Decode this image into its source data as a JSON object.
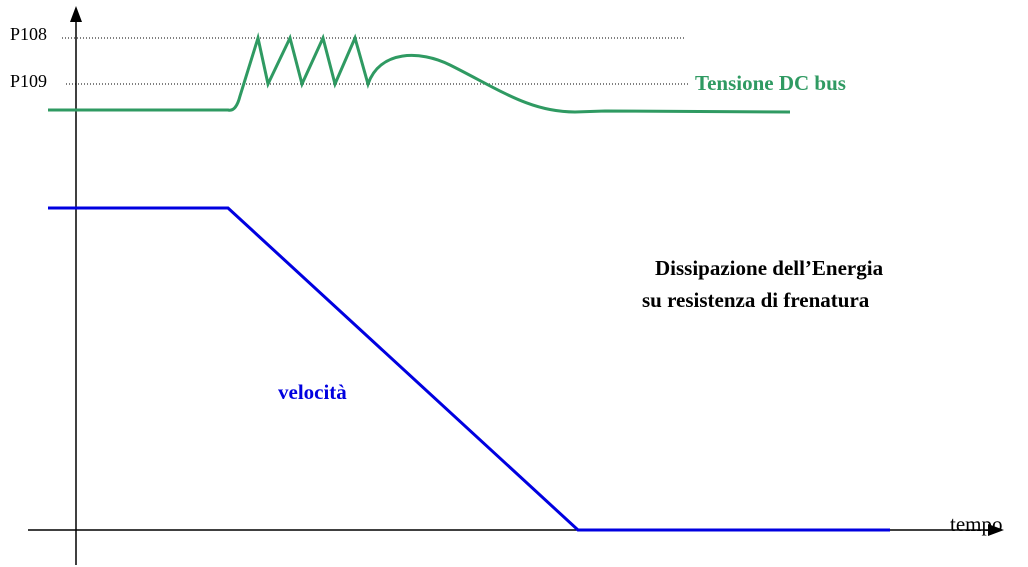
{
  "labels": {
    "p108": "P108",
    "p109": "P109",
    "dc_bus": "Tensione DC bus",
    "energy_line1": "Dissipazione dell’Energia",
    "energy_line2": "su resistenza di frenatura",
    "speed": "velocità",
    "time": "tempo"
  }
}
